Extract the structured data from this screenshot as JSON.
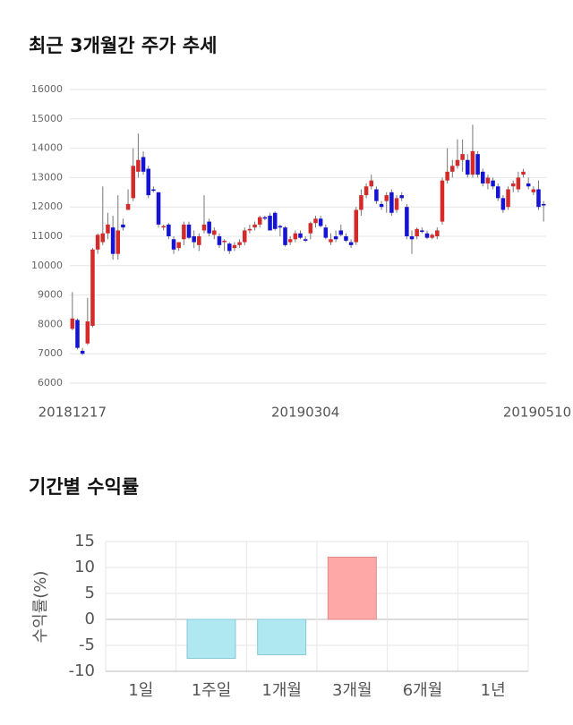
{
  "chart_data": [
    {
      "type": "candlestick",
      "title": "최근 3개월간 주가 추세",
      "categories": [
        "20181217",
        null,
        null,
        null,
        null,
        null,
        null,
        null,
        null,
        null,
        null,
        null,
        null,
        null,
        null,
        null,
        null,
        null,
        null,
        null,
        null,
        null,
        null,
        null,
        null,
        null,
        null,
        null,
        null,
        null,
        null,
        null,
        null,
        null,
        null,
        null,
        null,
        null,
        null,
        null,
        null,
        null,
        null,
        null,
        null,
        null,
        "20190304",
        null,
        null,
        null,
        null,
        null,
        null,
        null,
        null,
        null,
        null,
        null,
        null,
        null,
        null,
        null,
        null,
        null,
        null,
        null,
        null,
        null,
        null,
        null,
        null,
        null,
        null,
        null,
        null,
        null,
        null,
        null,
        null,
        null,
        null,
        null,
        null,
        null,
        null,
        null,
        null,
        null,
        null,
        null,
        null,
        null,
        null,
        "20190510"
      ],
      "open": [
        7850,
        8150,
        7100,
        7350,
        7950,
        10550,
        10800,
        11100,
        11300,
        10400,
        11400,
        11900,
        12300,
        13200,
        13700,
        13300,
        12600,
        12500,
        11300,
        11400,
        10900,
        10600,
        10900,
        11400,
        11000,
        10700,
        11200,
        11500,
        11050,
        11000,
        10800,
        10750,
        10600,
        10700,
        10800,
        11200,
        11300,
        11400,
        11650,
        11700,
        11800,
        11350,
        11300,
        10800,
        10900,
        11100,
        10900,
        11100,
        11450,
        11600,
        11300,
        10800,
        11000,
        11200,
        11000,
        10800,
        10800,
        11900,
        12400,
        12700,
        12600,
        12100,
        12200,
        12500,
        11900,
        12400,
        12000,
        11000,
        11000,
        11200,
        11100,
        10950,
        11000,
        11500,
        12900,
        13200,
        13400,
        13600,
        13600,
        13100,
        13800,
        13200,
        12800,
        12900,
        12700,
        12300,
        12000,
        12700,
        12600,
        13100,
        12800,
        12500,
        12600,
        12100
      ],
      "high": [
        9100,
        8200,
        7200,
        8900,
        10600,
        11100,
        12700,
        11800,
        11700,
        12400,
        11600,
        12600,
        14000,
        14500,
        13900,
        13400,
        12700,
        12500,
        11400,
        11450,
        11000,
        10800,
        11500,
        11500,
        11200,
        11100,
        12400,
        11600,
        11300,
        11100,
        10900,
        10800,
        10800,
        10900,
        11300,
        11400,
        11500,
        11700,
        11700,
        11800,
        11850,
        11400,
        11350,
        11000,
        11200,
        11200,
        11000,
        11500,
        11700,
        11700,
        11400,
        11100,
        11200,
        11400,
        11100,
        10900,
        12000,
        12600,
        12800,
        13100,
        12700,
        12200,
        12500,
        12600,
        12400,
        12500,
        12100,
        11200,
        11300,
        11300,
        11200,
        11100,
        11300,
        13000,
        14000,
        13600,
        14300,
        14300,
        13800,
        14800,
        13900,
        13300,
        13100,
        13000,
        12800,
        12400,
        12700,
        12900,
        13200,
        13300,
        13000,
        12700,
        12900,
        12200
      ],
      "low": [
        7800,
        7150,
        6950,
        7300,
        7900,
        10400,
        10700,
        10900,
        10200,
        10200,
        11200,
        11900,
        12200,
        13000,
        13100,
        12300,
        12500,
        11300,
        11200,
        10900,
        10400,
        10500,
        10700,
        10900,
        10600,
        10500,
        11100,
        11000,
        10900,
        10600,
        10500,
        10400,
        10500,
        10600,
        10700,
        11100,
        11200,
        11300,
        11550,
        11200,
        11200,
        11000,
        10650,
        10700,
        10800,
        10900,
        10800,
        10900,
        11300,
        11300,
        10900,
        10700,
        10800,
        11000,
        10800,
        10600,
        10700,
        11700,
        12300,
        12600,
        12100,
        11900,
        11800,
        11700,
        11800,
        12200,
        10900,
        10400,
        10900,
        11100,
        10900,
        10900,
        10900,
        11400,
        12800,
        13000,
        13300,
        13200,
        13000,
        13000,
        13000,
        12700,
        12600,
        12600,
        12200,
        11800,
        11900,
        12500,
        12500,
        13000,
        12600,
        12400,
        11900,
        11500
      ],
      "close": [
        8200,
        7200,
        7000,
        8100,
        10550,
        11050,
        11100,
        11400,
        10400,
        11200,
        11300,
        12100,
        13400,
        13600,
        13200,
        12400,
        12550,
        11400,
        11350,
        11000,
        10550,
        10800,
        11400,
        10950,
        10800,
        11000,
        11400,
        11100,
        11200,
        10700,
        10850,
        10500,
        10700,
        10800,
        11200,
        11250,
        11400,
        11650,
        11600,
        11200,
        11250,
        11300,
        10700,
        10900,
        11100,
        10950,
        10850,
        11450,
        11600,
        11350,
        10950,
        10900,
        10900,
        11050,
        10850,
        10700,
        11900,
        12400,
        12700,
        12900,
        12200,
        12000,
        12400,
        11800,
        12300,
        12300,
        11000,
        10900,
        11250,
        11150,
        10950,
        11050,
        11200,
        12900,
        13200,
        13400,
        13600,
        13800,
        13100,
        13900,
        13100,
        12800,
        13000,
        12700,
        12300,
        11900,
        12600,
        12800,
        13000,
        13200,
        12700,
        12600,
        12000,
        12050
      ],
      "up_color": "#d42a2a",
      "down_color": "#1414d2",
      "wick_color": "#777777",
      "ylim": [
        6000,
        16000
      ],
      "yticks": [
        6000,
        7000,
        8000,
        9000,
        10000,
        11000,
        12000,
        13000,
        14000,
        15000,
        16000
      ],
      "grid": true
    },
    {
      "type": "bar",
      "title": "기간별 수익률",
      "y_label": "수익률(%)",
      "categories": [
        "1일",
        "1주일",
        "1개월",
        "3개월",
        "6개월",
        "1년"
      ],
      "values": [
        null,
        -7.5,
        -6.8,
        12,
        null,
        null
      ],
      "positive_color": "#ffa8a8",
      "negative_color": "#b0e8f2",
      "ylim": [
        -10,
        15
      ],
      "yticks": [
        15,
        10,
        5,
        0,
        -5,
        -10
      ],
      "grid": true
    }
  ]
}
